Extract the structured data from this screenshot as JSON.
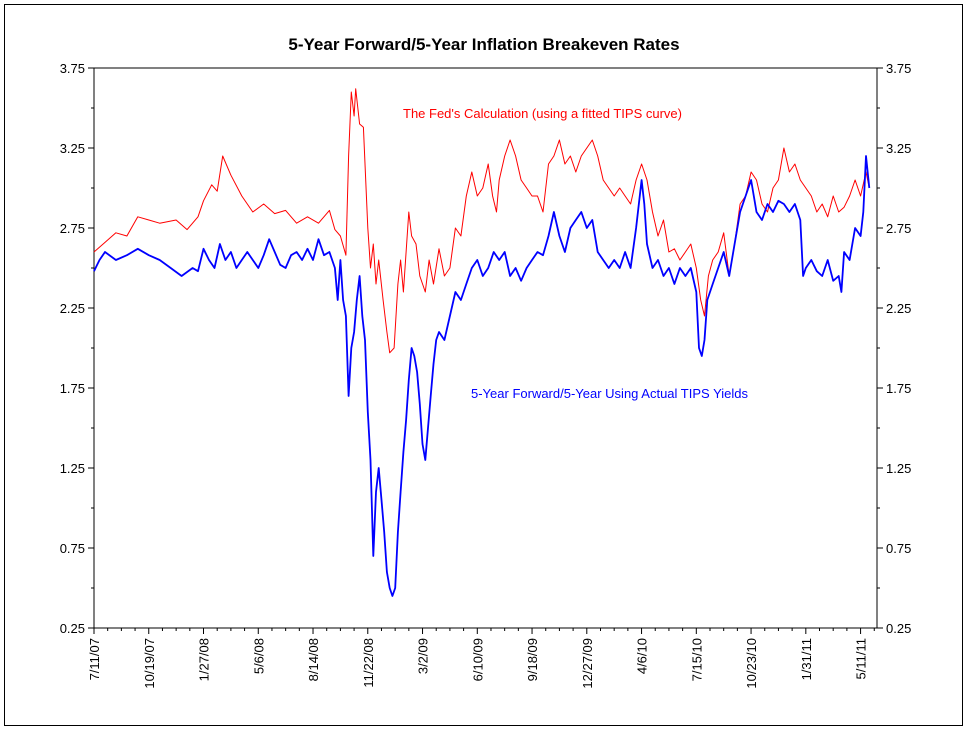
{
  "chart_data": {
    "type": "line",
    "title": "5-Year Forward/5-Year Inflation Breakeven Rates",
    "xlabel": "",
    "ylabel": "",
    "ylim": [
      0.25,
      3.75
    ],
    "y_ticks": [
      "0.25",
      "0.75",
      "1.25",
      "1.75",
      "2.25",
      "2.75",
      "3.25",
      "3.75"
    ],
    "x_tick_labels": [
      "7/11/07",
      "10/19/07",
      "1/27/08",
      "5/6/08",
      "8/14/08",
      "11/22/08",
      "3/2/09",
      "6/10/09",
      "9/18/09",
      "12/27/09",
      "4/6/10",
      "7/15/10",
      "10/23/10",
      "1/31/11",
      "5/11/11"
    ],
    "x_tick_days": [
      0,
      100,
      200,
      300,
      400,
      500,
      600,
      700,
      800,
      900,
      1000,
      1100,
      1200,
      1300,
      1400
    ],
    "series": [
      {
        "name": "The Fed's Calculation (using a fitted TIPS curve)",
        "color": "#ff0000",
        "points": [
          [
            0,
            2.6
          ],
          [
            20,
            2.66
          ],
          [
            40,
            2.72
          ],
          [
            60,
            2.7
          ],
          [
            80,
            2.82
          ],
          [
            100,
            2.8
          ],
          [
            120,
            2.78
          ],
          [
            150,
            2.8
          ],
          [
            170,
            2.74
          ],
          [
            190,
            2.82
          ],
          [
            200,
            2.92
          ],
          [
            215,
            3.02
          ],
          [
            225,
            2.98
          ],
          [
            235,
            3.2
          ],
          [
            250,
            3.08
          ],
          [
            270,
            2.95
          ],
          [
            290,
            2.85
          ],
          [
            310,
            2.9
          ],
          [
            330,
            2.84
          ],
          [
            350,
            2.86
          ],
          [
            370,
            2.78
          ],
          [
            390,
            2.82
          ],
          [
            410,
            2.78
          ],
          [
            430,
            2.86
          ],
          [
            440,
            2.74
          ],
          [
            450,
            2.7
          ],
          [
            460,
            2.58
          ],
          [
            465,
            3.2
          ],
          [
            470,
            3.6
          ],
          [
            475,
            3.45
          ],
          [
            478,
            3.62
          ],
          [
            485,
            3.4
          ],
          [
            492,
            3.38
          ],
          [
            500,
            2.75
          ],
          [
            505,
            2.5
          ],
          [
            510,
            2.65
          ],
          [
            515,
            2.4
          ],
          [
            520,
            2.55
          ],
          [
            528,
            2.3
          ],
          [
            535,
            2.1
          ],
          [
            540,
            1.97
          ],
          [
            548,
            2.0
          ],
          [
            555,
            2.4
          ],
          [
            560,
            2.55
          ],
          [
            565,
            2.35
          ],
          [
            575,
            2.85
          ],
          [
            580,
            2.7
          ],
          [
            588,
            2.65
          ],
          [
            595,
            2.45
          ],
          [
            605,
            2.35
          ],
          [
            612,
            2.55
          ],
          [
            620,
            2.4
          ],
          [
            630,
            2.62
          ],
          [
            640,
            2.45
          ],
          [
            650,
            2.5
          ],
          [
            660,
            2.75
          ],
          [
            670,
            2.7
          ],
          [
            680,
            2.95
          ],
          [
            690,
            3.1
          ],
          [
            700,
            2.95
          ],
          [
            710,
            3.0
          ],
          [
            720,
            3.15
          ],
          [
            728,
            2.95
          ],
          [
            735,
            2.85
          ],
          [
            740,
            3.05
          ],
          [
            750,
            3.2
          ],
          [
            760,
            3.3
          ],
          [
            770,
            3.2
          ],
          [
            780,
            3.05
          ],
          [
            790,
            3.0
          ],
          [
            800,
            2.95
          ],
          [
            810,
            2.95
          ],
          [
            820,
            2.85
          ],
          [
            830,
            3.15
          ],
          [
            840,
            3.2
          ],
          [
            850,
            3.3
          ],
          [
            860,
            3.15
          ],
          [
            870,
            3.2
          ],
          [
            880,
            3.1
          ],
          [
            890,
            3.2
          ],
          [
            900,
            3.25
          ],
          [
            910,
            3.3
          ],
          [
            920,
            3.2
          ],
          [
            930,
            3.05
          ],
          [
            940,
            3.0
          ],
          [
            950,
            2.95
          ],
          [
            960,
            3.0
          ],
          [
            970,
            2.95
          ],
          [
            980,
            2.9
          ],
          [
            990,
            3.05
          ],
          [
            1000,
            3.15
          ],
          [
            1010,
            3.05
          ],
          [
            1020,
            2.85
          ],
          [
            1030,
            2.7
          ],
          [
            1040,
            2.8
          ],
          [
            1050,
            2.6
          ],
          [
            1060,
            2.62
          ],
          [
            1070,
            2.55
          ],
          [
            1080,
            2.6
          ],
          [
            1090,
            2.65
          ],
          [
            1100,
            2.5
          ],
          [
            1108,
            2.3
          ],
          [
            1115,
            2.2
          ],
          [
            1122,
            2.45
          ],
          [
            1130,
            2.55
          ],
          [
            1140,
            2.6
          ],
          [
            1150,
            2.72
          ],
          [
            1160,
            2.45
          ],
          [
            1170,
            2.65
          ],
          [
            1180,
            2.9
          ],
          [
            1190,
            2.95
          ],
          [
            1200,
            3.1
          ],
          [
            1210,
            3.05
          ],
          [
            1220,
            2.9
          ],
          [
            1230,
            2.85
          ],
          [
            1240,
            3.0
          ],
          [
            1250,
            3.05
          ],
          [
            1260,
            3.25
          ],
          [
            1270,
            3.1
          ],
          [
            1280,
            3.15
          ],
          [
            1290,
            3.05
          ],
          [
            1300,
            3.0
          ],
          [
            1310,
            2.95
          ],
          [
            1320,
            2.85
          ],
          [
            1330,
            2.9
          ],
          [
            1340,
            2.82
          ],
          [
            1350,
            2.95
          ],
          [
            1360,
            2.85
          ],
          [
            1370,
            2.88
          ],
          [
            1380,
            2.95
          ],
          [
            1390,
            3.05
          ],
          [
            1400,
            2.95
          ],
          [
            1410,
            3.1
          ],
          [
            1416,
            3.0
          ]
        ]
      },
      {
        "name": "5-Year Forward/5-Year Using Actual TIPS Yields",
        "color": "#0000ff",
        "points": [
          [
            0,
            2.48
          ],
          [
            10,
            2.55
          ],
          [
            20,
            2.6
          ],
          [
            40,
            2.55
          ],
          [
            60,
            2.58
          ],
          [
            80,
            2.62
          ],
          [
            100,
            2.58
          ],
          [
            120,
            2.55
          ],
          [
            140,
            2.5
          ],
          [
            160,
            2.45
          ],
          [
            180,
            2.5
          ],
          [
            190,
            2.48
          ],
          [
            200,
            2.62
          ],
          [
            210,
            2.55
          ],
          [
            220,
            2.5
          ],
          [
            230,
            2.65
          ],
          [
            240,
            2.55
          ],
          [
            250,
            2.6
          ],
          [
            260,
            2.5
          ],
          [
            270,
            2.55
          ],
          [
            280,
            2.6
          ],
          [
            290,
            2.55
          ],
          [
            300,
            2.5
          ],
          [
            310,
            2.58
          ],
          [
            320,
            2.68
          ],
          [
            330,
            2.6
          ],
          [
            340,
            2.52
          ],
          [
            350,
            2.5
          ],
          [
            360,
            2.58
          ],
          [
            370,
            2.6
          ],
          [
            380,
            2.55
          ],
          [
            390,
            2.62
          ],
          [
            400,
            2.55
          ],
          [
            410,
            2.68
          ],
          [
            420,
            2.58
          ],
          [
            430,
            2.6
          ],
          [
            440,
            2.5
          ],
          [
            445,
            2.3
          ],
          [
            450,
            2.55
          ],
          [
            455,
            2.3
          ],
          [
            460,
            2.2
          ],
          [
            465,
            1.7
          ],
          [
            470,
            2.0
          ],
          [
            475,
            2.1
          ],
          [
            480,
            2.3
          ],
          [
            485,
            2.45
          ],
          [
            490,
            2.2
          ],
          [
            495,
            2.05
          ],
          [
            500,
            1.6
          ],
          [
            505,
            1.3
          ],
          [
            510,
            0.7
          ],
          [
            515,
            1.1
          ],
          [
            520,
            1.25
          ],
          [
            525,
            1.05
          ],
          [
            530,
            0.85
          ],
          [
            535,
            0.6
          ],
          [
            540,
            0.5
          ],
          [
            545,
            0.45
          ],
          [
            550,
            0.5
          ],
          [
            555,
            0.85
          ],
          [
            560,
            1.1
          ],
          [
            565,
            1.35
          ],
          [
            570,
            1.55
          ],
          [
            575,
            1.8
          ],
          [
            580,
            2.0
          ],
          [
            585,
            1.95
          ],
          [
            590,
            1.85
          ],
          [
            595,
            1.65
          ],
          [
            600,
            1.4
          ],
          [
            605,
            1.3
          ],
          [
            610,
            1.5
          ],
          [
            615,
            1.7
          ],
          [
            620,
            1.9
          ],
          [
            625,
            2.05
          ],
          [
            630,
            2.1
          ],
          [
            640,
            2.05
          ],
          [
            650,
            2.2
          ],
          [
            660,
            2.35
          ],
          [
            670,
            2.3
          ],
          [
            680,
            2.4
          ],
          [
            690,
            2.5
          ],
          [
            700,
            2.55
          ],
          [
            710,
            2.45
          ],
          [
            720,
            2.5
          ],
          [
            730,
            2.6
          ],
          [
            740,
            2.55
          ],
          [
            750,
            2.6
          ],
          [
            760,
            2.45
          ],
          [
            770,
            2.5
          ],
          [
            780,
            2.42
          ],
          [
            790,
            2.5
          ],
          [
            800,
            2.55
          ],
          [
            810,
            2.6
          ],
          [
            820,
            2.58
          ],
          [
            830,
            2.7
          ],
          [
            840,
            2.85
          ],
          [
            850,
            2.7
          ],
          [
            860,
            2.6
          ],
          [
            870,
            2.75
          ],
          [
            880,
            2.8
          ],
          [
            890,
            2.85
          ],
          [
            900,
            2.75
          ],
          [
            910,
            2.8
          ],
          [
            920,
            2.6
          ],
          [
            930,
            2.55
          ],
          [
            940,
            2.5
          ],
          [
            950,
            2.55
          ],
          [
            960,
            2.5
          ],
          [
            970,
            2.6
          ],
          [
            980,
            2.5
          ],
          [
            990,
            2.75
          ],
          [
            1000,
            3.05
          ],
          [
            1005,
            2.9
          ],
          [
            1010,
            2.65
          ],
          [
            1020,
            2.5
          ],
          [
            1030,
            2.55
          ],
          [
            1040,
            2.45
          ],
          [
            1050,
            2.5
          ],
          [
            1060,
            2.4
          ],
          [
            1070,
            2.5
          ],
          [
            1080,
            2.45
          ],
          [
            1090,
            2.5
          ],
          [
            1100,
            2.35
          ],
          [
            1105,
            2.0
          ],
          [
            1110,
            1.95
          ],
          [
            1115,
            2.05
          ],
          [
            1120,
            2.3
          ],
          [
            1130,
            2.4
          ],
          [
            1140,
            2.5
          ],
          [
            1150,
            2.6
          ],
          [
            1160,
            2.45
          ],
          [
            1170,
            2.65
          ],
          [
            1180,
            2.85
          ],
          [
            1190,
            2.95
          ],
          [
            1200,
            3.05
          ],
          [
            1210,
            2.85
          ],
          [
            1220,
            2.8
          ],
          [
            1230,
            2.9
          ],
          [
            1240,
            2.85
          ],
          [
            1250,
            2.92
          ],
          [
            1260,
            2.9
          ],
          [
            1270,
            2.85
          ],
          [
            1280,
            2.9
          ],
          [
            1290,
            2.8
          ],
          [
            1295,
            2.45
          ],
          [
            1300,
            2.5
          ],
          [
            1310,
            2.55
          ],
          [
            1320,
            2.48
          ],
          [
            1330,
            2.45
          ],
          [
            1340,
            2.55
          ],
          [
            1350,
            2.42
          ],
          [
            1360,
            2.45
          ],
          [
            1365,
            2.35
          ],
          [
            1370,
            2.6
          ],
          [
            1380,
            2.55
          ],
          [
            1390,
            2.75
          ],
          [
            1400,
            2.7
          ],
          [
            1405,
            2.85
          ],
          [
            1410,
            3.2
          ],
          [
            1416,
            3.0
          ]
        ]
      }
    ],
    "annotations": [
      {
        "text": "The Fed's Calculation (using a fitted TIPS curve)",
        "color": "#ff0000"
      },
      {
        "text": "5-Year Forward/5-Year Using Actual TIPS Yields",
        "color": "#0000ff"
      }
    ],
    "grid": false,
    "legend": "none"
  }
}
